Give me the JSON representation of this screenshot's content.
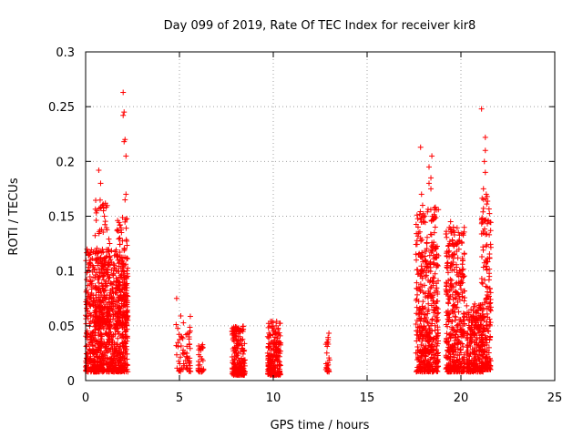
{
  "chart_data": {
    "type": "scatter",
    "title": "Day 099 of 2019, Rate Of TEC Index for receiver kir8",
    "xlabel": "GPS time / hours",
    "ylabel": "ROTI / TECUs",
    "xlim": [
      0,
      25
    ],
    "ylim": [
      0,
      0.3
    ],
    "x_ticks": [
      "0",
      "5",
      "10",
      "15",
      "20",
      "25"
    ],
    "y_ticks": [
      "0",
      "0.05",
      "0.1",
      "0.15",
      "0.2",
      "0.25",
      "0.3"
    ],
    "grid": true,
    "marker": "+",
    "color": "#ff0000",
    "series": [
      {
        "name": "ROTI",
        "clusters": [
          {
            "x0": 0.0,
            "x1": 2.25,
            "y_min": 0.008,
            "y_max": 0.12,
            "n": 900
          },
          {
            "x0": 0.5,
            "x1": 1.3,
            "y_min": 0.05,
            "y_max": 0.165,
            "n": 120
          },
          {
            "x0": 1.6,
            "x1": 2.25,
            "y_min": 0.05,
            "y_max": 0.15,
            "n": 120
          },
          {
            "x0": 4.8,
            "x1": 5.6,
            "y_min": 0.008,
            "y_max": 0.06,
            "n": 60
          },
          {
            "x0": 6.0,
            "x1": 6.3,
            "y_min": 0.008,
            "y_max": 0.034,
            "n": 30
          },
          {
            "x0": 7.8,
            "x1": 8.5,
            "y_min": 0.005,
            "y_max": 0.05,
            "n": 200
          },
          {
            "x0": 9.7,
            "x1": 10.4,
            "y_min": 0.005,
            "y_max": 0.055,
            "n": 220
          },
          {
            "x0": 12.8,
            "x1": 13.0,
            "y_min": 0.008,
            "y_max": 0.046,
            "n": 25
          },
          {
            "x0": 17.6,
            "x1": 18.8,
            "y_min": 0.008,
            "y_max": 0.16,
            "n": 500
          },
          {
            "x0": 19.2,
            "x1": 20.2,
            "y_min": 0.008,
            "y_max": 0.14,
            "n": 380
          },
          {
            "x0": 20.3,
            "x1": 21.2,
            "y_min": 0.008,
            "y_max": 0.07,
            "n": 260
          },
          {
            "x0": 21.1,
            "x1": 21.6,
            "y_min": 0.01,
            "y_max": 0.17,
            "n": 180
          }
        ],
        "points": [
          [
            2.0,
            0.263
          ],
          [
            2.05,
            0.245
          ],
          [
            2.0,
            0.242
          ],
          [
            2.1,
            0.22
          ],
          [
            2.05,
            0.218
          ],
          [
            2.15,
            0.205
          ],
          [
            0.7,
            0.192
          ],
          [
            0.8,
            0.18
          ],
          [
            0.9,
            0.16
          ],
          [
            0.95,
            0.155
          ],
          [
            1.0,
            0.15
          ],
          [
            2.15,
            0.17
          ],
          [
            2.1,
            0.165
          ],
          [
            4.85,
            0.075
          ],
          [
            17.85,
            0.213
          ],
          [
            18.45,
            0.205
          ],
          [
            18.3,
            0.195
          ],
          [
            18.4,
            0.185
          ],
          [
            18.3,
            0.18
          ],
          [
            18.4,
            0.175
          ],
          [
            17.9,
            0.17
          ],
          [
            19.45,
            0.145
          ],
          [
            19.6,
            0.14
          ],
          [
            19.65,
            0.133
          ],
          [
            19.4,
            0.125
          ],
          [
            21.1,
            0.248
          ],
          [
            21.3,
            0.222
          ],
          [
            21.3,
            0.21
          ],
          [
            21.25,
            0.2
          ],
          [
            21.3,
            0.19
          ],
          [
            21.2,
            0.175
          ],
          [
            21.35,
            0.17
          ],
          [
            21.4,
            0.168
          ],
          [
            21.6,
            0.067
          ],
          [
            21.55,
            0.065
          ],
          [
            21.5,
            0.03
          ],
          [
            21.55,
            0.02
          ],
          [
            21.5,
            0.01
          ]
        ]
      }
    ]
  }
}
